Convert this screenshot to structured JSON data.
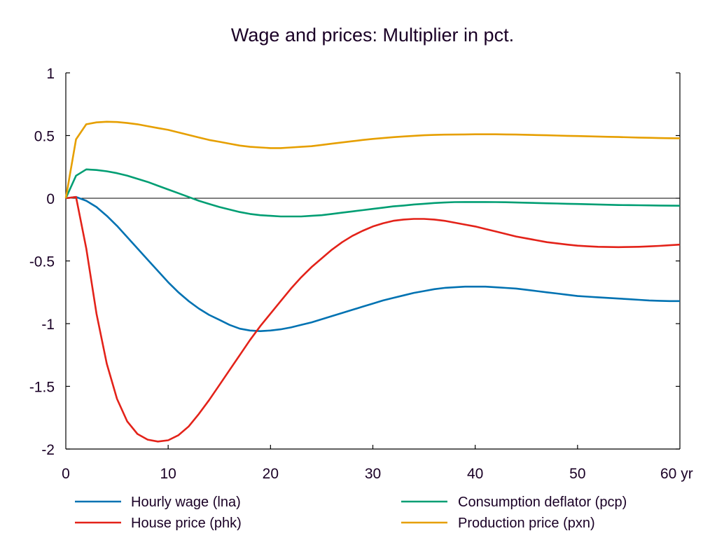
{
  "chart_data": {
    "type": "line",
    "title": "Wage and prices: Multiplier in pct.",
    "xlabel": "",
    "ylabel": "",
    "x_unit_label": "yr",
    "xlim": [
      0,
      60
    ],
    "ylim": [
      -2,
      1
    ],
    "x_ticks": [
      0,
      10,
      20,
      30,
      40,
      50,
      60
    ],
    "x_tick_labels": [
      "0",
      "10",
      "20",
      "30",
      "40",
      "50",
      "60 yr"
    ],
    "y_ticks": [
      1,
      0.5,
      0,
      -0.5,
      -1,
      -1.5,
      -2
    ],
    "y_tick_labels": [
      "1",
      "0.5",
      "0",
      "-0.5",
      "-1",
      "-1.5",
      "-2"
    ],
    "grid": false,
    "zero_line": true,
    "legend_position": "bottom",
    "x": [
      0,
      1,
      2,
      3,
      4,
      5,
      6,
      7,
      8,
      9,
      10,
      11,
      12,
      13,
      14,
      15,
      16,
      17,
      18,
      19,
      20,
      21,
      22,
      23,
      24,
      25,
      26,
      27,
      28,
      29,
      30,
      31,
      32,
      33,
      34,
      35,
      36,
      37,
      38,
      39,
      40,
      41,
      42,
      43,
      44,
      45,
      46,
      47,
      48,
      49,
      50,
      51,
      52,
      53,
      54,
      55,
      56,
      57,
      58,
      59,
      60
    ],
    "series": [
      {
        "name": "Hourly wage (lna)",
        "color": "#0072b2",
        "values": [
          0,
          0.01,
          -0.02,
          -0.07,
          -0.14,
          -0.22,
          -0.31,
          -0.4,
          -0.49,
          -0.58,
          -0.67,
          -0.75,
          -0.82,
          -0.88,
          -0.93,
          -0.97,
          -1.01,
          -1.04,
          -1.055,
          -1.06,
          -1.055,
          -1.045,
          -1.03,
          -1.01,
          -0.99,
          -0.965,
          -0.94,
          -0.915,
          -0.89,
          -0.865,
          -0.84,
          -0.815,
          -0.795,
          -0.775,
          -0.755,
          -0.74,
          -0.725,
          -0.715,
          -0.71,
          -0.705,
          -0.705,
          -0.705,
          -0.71,
          -0.715,
          -0.72,
          -0.73,
          -0.74,
          -0.75,
          -0.76,
          -0.77,
          -0.78,
          -0.785,
          -0.79,
          -0.795,
          -0.8,
          -0.805,
          -0.81,
          -0.815,
          -0.818,
          -0.82,
          -0.82
        ]
      },
      {
        "name": "House price (phk)",
        "color": "#e32219",
        "values": [
          0,
          0.01,
          -0.4,
          -0.92,
          -1.32,
          -1.6,
          -1.78,
          -1.88,
          -1.925,
          -1.94,
          -1.93,
          -1.89,
          -1.82,
          -1.72,
          -1.61,
          -1.49,
          -1.37,
          -1.25,
          -1.13,
          -1.02,
          -0.92,
          -0.82,
          -0.72,
          -0.63,
          -0.55,
          -0.48,
          -0.41,
          -0.35,
          -0.3,
          -0.26,
          -0.225,
          -0.2,
          -0.18,
          -0.17,
          -0.165,
          -0.165,
          -0.17,
          -0.18,
          -0.195,
          -0.21,
          -0.225,
          -0.245,
          -0.265,
          -0.285,
          -0.305,
          -0.32,
          -0.335,
          -0.35,
          -0.36,
          -0.37,
          -0.378,
          -0.383,
          -0.387,
          -0.389,
          -0.39,
          -0.389,
          -0.387,
          -0.384,
          -0.38,
          -0.375,
          -0.37
        ]
      },
      {
        "name": "Consumption deflator (pcp)",
        "color": "#009e73",
        "values": [
          0,
          0.18,
          0.23,
          0.225,
          0.215,
          0.2,
          0.18,
          0.155,
          0.13,
          0.1,
          0.07,
          0.04,
          0.01,
          -0.02,
          -0.045,
          -0.07,
          -0.09,
          -0.11,
          -0.125,
          -0.135,
          -0.14,
          -0.145,
          -0.145,
          -0.145,
          -0.14,
          -0.135,
          -0.125,
          -0.115,
          -0.105,
          -0.095,
          -0.085,
          -0.075,
          -0.065,
          -0.058,
          -0.05,
          -0.044,
          -0.038,
          -0.034,
          -0.031,
          -0.03,
          -0.03,
          -0.03,
          -0.031,
          -0.032,
          -0.034,
          -0.036,
          -0.038,
          -0.04,
          -0.042,
          -0.044,
          -0.046,
          -0.048,
          -0.05,
          -0.052,
          -0.054,
          -0.055,
          -0.056,
          -0.057,
          -0.058,
          -0.059,
          -0.06
        ]
      },
      {
        "name": "Production price (pxn)",
        "color": "#e69f00",
        "values": [
          0,
          0.47,
          0.59,
          0.605,
          0.61,
          0.608,
          0.6,
          0.59,
          0.575,
          0.56,
          0.545,
          0.525,
          0.505,
          0.485,
          0.465,
          0.45,
          0.435,
          0.42,
          0.41,
          0.405,
          0.4,
          0.4,
          0.405,
          0.41,
          0.415,
          0.425,
          0.435,
          0.445,
          0.455,
          0.465,
          0.473,
          0.48,
          0.487,
          0.493,
          0.498,
          0.502,
          0.505,
          0.507,
          0.508,
          0.509,
          0.51,
          0.51,
          0.51,
          0.509,
          0.508,
          0.506,
          0.504,
          0.502,
          0.5,
          0.498,
          0.496,
          0.494,
          0.492,
          0.49,
          0.488,
          0.486,
          0.484,
          0.482,
          0.48,
          0.479,
          0.478
        ]
      }
    ]
  }
}
